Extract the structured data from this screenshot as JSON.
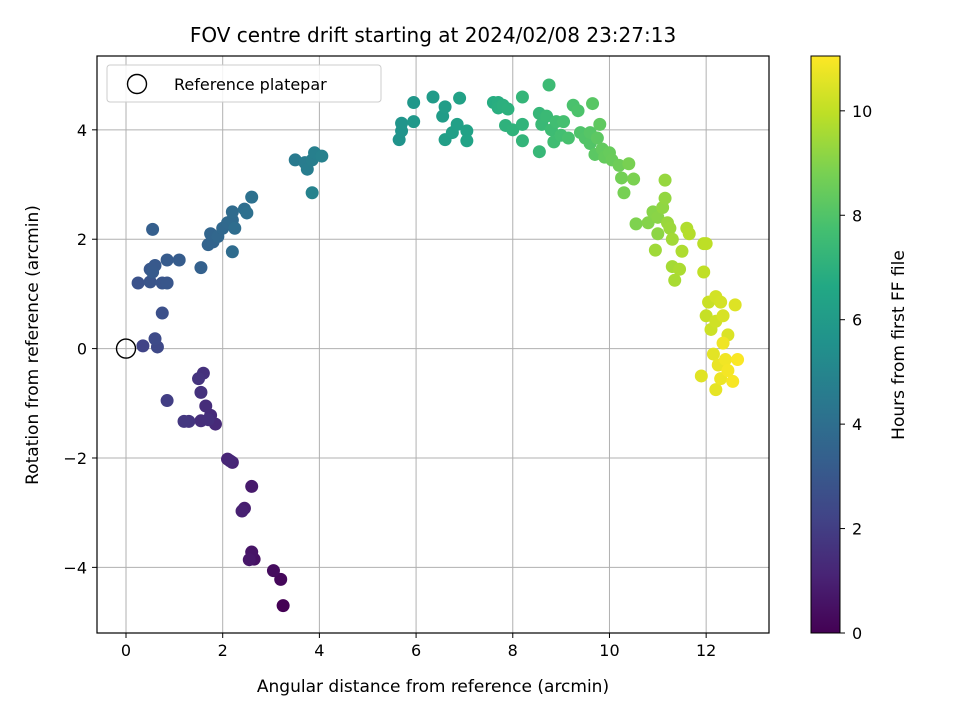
{
  "chart_data": {
    "type": "scatter",
    "title": "FOV centre drift starting at 2024/02/08 23:27:13",
    "xlabel": "Angular distance from reference (arcmin)",
    "ylabel": "Rotation from reference (arcmin)",
    "xlim": [
      -0.6,
      13.3
    ],
    "ylim": [
      -5.2,
      5.35
    ],
    "xticks": [
      0,
      2,
      4,
      6,
      8,
      10,
      12
    ],
    "yticks": [
      -4,
      -2,
      0,
      2,
      4
    ],
    "grid": true,
    "legend": {
      "label": "Reference platepar",
      "placement": "upper-left"
    },
    "reference_point": {
      "x": 0,
      "y": 0
    },
    "colorbar": {
      "label": "Hours from first FF file",
      "range": [
        0,
        11.05
      ],
      "ticks": [
        0,
        2,
        4,
        6,
        8,
        10
      ],
      "colormap": "viridis"
    },
    "points": [
      {
        "x": 3.25,
        "y": -4.7,
        "t": 0.0
      },
      {
        "x": 3.2,
        "y": -4.22,
        "t": 0.2
      },
      {
        "x": 3.05,
        "y": -4.06,
        "t": 0.35
      },
      {
        "x": 2.65,
        "y": -3.85,
        "t": 0.5
      },
      {
        "x": 2.6,
        "y": -3.72,
        "t": 0.6
      },
      {
        "x": 2.55,
        "y": -3.86,
        "t": 0.7
      },
      {
        "x": 2.6,
        "y": -2.52,
        "t": 0.8
      },
      {
        "x": 2.45,
        "y": -2.92,
        "t": 0.9
      },
      {
        "x": 2.4,
        "y": -2.97,
        "t": 1.0
      },
      {
        "x": 2.2,
        "y": -2.08,
        "t": 1.1
      },
      {
        "x": 2.1,
        "y": -2.02,
        "t": 1.15
      },
      {
        "x": 2.15,
        "y": -2.05,
        "t": 1.2
      },
      {
        "x": 1.85,
        "y": -1.38,
        "t": 1.3
      },
      {
        "x": 1.75,
        "y": -1.22,
        "t": 1.35
      },
      {
        "x": 1.65,
        "y": -1.05,
        "t": 1.4
      },
      {
        "x": 1.55,
        "y": -1.32,
        "t": 1.45
      },
      {
        "x": 1.7,
        "y": -1.3,
        "t": 1.5
      },
      {
        "x": 1.6,
        "y": -0.45,
        "t": 1.55
      },
      {
        "x": 1.55,
        "y": -0.8,
        "t": 1.6
      },
      {
        "x": 1.5,
        "y": -0.55,
        "t": 1.65
      },
      {
        "x": 1.3,
        "y": -1.33,
        "t": 1.7
      },
      {
        "x": 1.2,
        "y": -1.33,
        "t": 1.8
      },
      {
        "x": 0.85,
        "y": -0.95,
        "t": 2.0
      },
      {
        "x": 0.35,
        "y": 0.05,
        "t": 2.2
      },
      {
        "x": 0.65,
        "y": 0.03,
        "t": 2.4
      },
      {
        "x": 0.6,
        "y": 0.18,
        "t": 2.5
      },
      {
        "x": 0.75,
        "y": 0.65,
        "t": 2.7
      },
      {
        "x": 0.25,
        "y": 1.2,
        "t": 2.8
      },
      {
        "x": 0.5,
        "y": 1.22,
        "t": 2.85
      },
      {
        "x": 0.75,
        "y": 1.2,
        "t": 2.9
      },
      {
        "x": 0.85,
        "y": 1.2,
        "t": 2.95
      },
      {
        "x": 0.5,
        "y": 1.45,
        "t": 3.0
      },
      {
        "x": 0.6,
        "y": 1.52,
        "t": 3.05
      },
      {
        "x": 0.55,
        "y": 1.4,
        "t": 3.1
      },
      {
        "x": 0.85,
        "y": 1.62,
        "t": 3.15
      },
      {
        "x": 1.1,
        "y": 1.62,
        "t": 3.2
      },
      {
        "x": 0.55,
        "y": 2.18,
        "t": 3.3
      },
      {
        "x": 1.55,
        "y": 1.48,
        "t": 3.4
      },
      {
        "x": 1.7,
        "y": 1.9,
        "t": 3.5
      },
      {
        "x": 1.8,
        "y": 1.95,
        "t": 3.55
      },
      {
        "x": 1.75,
        "y": 2.1,
        "t": 3.6
      },
      {
        "x": 1.9,
        "y": 2.05,
        "t": 3.65
      },
      {
        "x": 2.0,
        "y": 2.2,
        "t": 3.7
      },
      {
        "x": 2.1,
        "y": 2.3,
        "t": 3.75
      },
      {
        "x": 2.2,
        "y": 2.35,
        "t": 3.8
      },
      {
        "x": 2.2,
        "y": 2.5,
        "t": 3.85
      },
      {
        "x": 2.2,
        "y": 1.77,
        "t": 3.9
      },
      {
        "x": 2.25,
        "y": 2.2,
        "t": 3.95
      },
      {
        "x": 2.45,
        "y": 2.55,
        "t": 4.0
      },
      {
        "x": 2.5,
        "y": 2.48,
        "t": 4.05
      },
      {
        "x": 2.6,
        "y": 2.77,
        "t": 4.1
      },
      {
        "x": 3.5,
        "y": 3.45,
        "t": 4.5
      },
      {
        "x": 3.7,
        "y": 3.4,
        "t": 4.6
      },
      {
        "x": 3.75,
        "y": 3.28,
        "t": 4.65
      },
      {
        "x": 3.85,
        "y": 3.45,
        "t": 4.7
      },
      {
        "x": 3.9,
        "y": 3.58,
        "t": 4.75
      },
      {
        "x": 4.05,
        "y": 3.52,
        "t": 4.8
      },
      {
        "x": 3.85,
        "y": 2.85,
        "t": 4.85
      },
      {
        "x": 5.65,
        "y": 3.82,
        "t": 5.6
      },
      {
        "x": 5.7,
        "y": 3.98,
        "t": 5.65
      },
      {
        "x": 5.7,
        "y": 4.12,
        "t": 5.7
      },
      {
        "x": 5.95,
        "y": 4.5,
        "t": 5.8
      },
      {
        "x": 5.95,
        "y": 4.15,
        "t": 5.85
      },
      {
        "x": 6.35,
        "y": 4.6,
        "t": 6.0
      },
      {
        "x": 6.55,
        "y": 4.25,
        "t": 6.05
      },
      {
        "x": 6.6,
        "y": 4.42,
        "t": 6.1
      },
      {
        "x": 6.6,
        "y": 3.82,
        "t": 6.15
      },
      {
        "x": 6.75,
        "y": 3.95,
        "t": 6.2
      },
      {
        "x": 6.85,
        "y": 4.1,
        "t": 6.25
      },
      {
        "x": 6.9,
        "y": 4.58,
        "t": 6.3
      },
      {
        "x": 7.05,
        "y": 3.98,
        "t": 6.35
      },
      {
        "x": 7.05,
        "y": 3.8,
        "t": 6.4
      },
      {
        "x": 7.6,
        "y": 4.5,
        "t": 6.8
      },
      {
        "x": 7.7,
        "y": 4.5,
        "t": 6.85
      },
      {
        "x": 7.7,
        "y": 4.4,
        "t": 6.9
      },
      {
        "x": 7.8,
        "y": 4.45,
        "t": 6.95
      },
      {
        "x": 7.9,
        "y": 4.38,
        "t": 7.0
      },
      {
        "x": 7.85,
        "y": 4.08,
        "t": 7.05
      },
      {
        "x": 8.0,
        "y": 4.0,
        "t": 7.1
      },
      {
        "x": 8.2,
        "y": 4.1,
        "t": 7.15
      },
      {
        "x": 8.2,
        "y": 3.8,
        "t": 7.2
      },
      {
        "x": 8.2,
        "y": 4.6,
        "t": 7.25
      },
      {
        "x": 8.55,
        "y": 4.3,
        "t": 7.3
      },
      {
        "x": 8.55,
        "y": 3.6,
        "t": 7.35
      },
      {
        "x": 8.6,
        "y": 4.1,
        "t": 7.4
      },
      {
        "x": 8.7,
        "y": 4.25,
        "t": 7.45
      },
      {
        "x": 8.75,
        "y": 4.82,
        "t": 7.5
      },
      {
        "x": 8.8,
        "y": 4.0,
        "t": 7.55
      },
      {
        "x": 8.85,
        "y": 3.78,
        "t": 7.6
      },
      {
        "x": 8.9,
        "y": 4.15,
        "t": 7.65
      },
      {
        "x": 9.0,
        "y": 3.9,
        "t": 7.7
      },
      {
        "x": 9.05,
        "y": 4.15,
        "t": 7.75
      },
      {
        "x": 9.15,
        "y": 3.85,
        "t": 7.8
      },
      {
        "x": 9.25,
        "y": 4.45,
        "t": 7.85
      },
      {
        "x": 9.35,
        "y": 4.35,
        "t": 7.9
      },
      {
        "x": 9.4,
        "y": 3.95,
        "t": 7.95
      },
      {
        "x": 9.5,
        "y": 3.85,
        "t": 8.0
      },
      {
        "x": 9.6,
        "y": 3.75,
        "t": 8.05
      },
      {
        "x": 9.6,
        "y": 3.95,
        "t": 8.1
      },
      {
        "x": 9.65,
        "y": 4.48,
        "t": 8.15
      },
      {
        "x": 9.7,
        "y": 3.55,
        "t": 8.2
      },
      {
        "x": 9.75,
        "y": 3.85,
        "t": 8.25
      },
      {
        "x": 9.8,
        "y": 4.1,
        "t": 8.3
      },
      {
        "x": 9.85,
        "y": 3.65,
        "t": 8.35
      },
      {
        "x": 9.9,
        "y": 3.5,
        "t": 8.4
      },
      {
        "x": 10.0,
        "y": 3.58,
        "t": 8.45
      },
      {
        "x": 10.05,
        "y": 3.45,
        "t": 8.5
      },
      {
        "x": 10.2,
        "y": 3.35,
        "t": 8.6
      },
      {
        "x": 10.25,
        "y": 3.12,
        "t": 8.7
      },
      {
        "x": 10.3,
        "y": 2.85,
        "t": 8.75
      },
      {
        "x": 10.4,
        "y": 3.38,
        "t": 8.8
      },
      {
        "x": 10.5,
        "y": 3.1,
        "t": 8.85
      },
      {
        "x": 10.55,
        "y": 2.28,
        "t": 8.9
      },
      {
        "x": 10.8,
        "y": 2.3,
        "t": 9.0
      },
      {
        "x": 10.9,
        "y": 2.5,
        "t": 9.05
      },
      {
        "x": 11.0,
        "y": 2.4,
        "t": 9.1
      },
      {
        "x": 11.0,
        "y": 2.1,
        "t": 9.15
      },
      {
        "x": 11.1,
        "y": 2.58,
        "t": 9.2
      },
      {
        "x": 11.15,
        "y": 2.75,
        "t": 9.25
      },
      {
        "x": 11.15,
        "y": 3.08,
        "t": 9.3
      },
      {
        "x": 11.2,
        "y": 2.3,
        "t": 9.35
      },
      {
        "x": 11.25,
        "y": 2.2,
        "t": 9.4
      },
      {
        "x": 10.95,
        "y": 1.8,
        "t": 9.45
      },
      {
        "x": 11.3,
        "y": 2.0,
        "t": 9.5
      },
      {
        "x": 11.3,
        "y": 1.5,
        "t": 9.55
      },
      {
        "x": 11.35,
        "y": 1.25,
        "t": 9.6
      },
      {
        "x": 11.45,
        "y": 1.45,
        "t": 9.65
      },
      {
        "x": 11.5,
        "y": 1.78,
        "t": 9.7
      },
      {
        "x": 11.6,
        "y": 2.2,
        "t": 9.75
      },
      {
        "x": 11.65,
        "y": 2.1,
        "t": 9.8
      },
      {
        "x": 11.95,
        "y": 1.92,
        "t": 9.9
      },
      {
        "x": 12.0,
        "y": 1.92,
        "t": 9.95
      },
      {
        "x": 11.95,
        "y": 1.4,
        "t": 10.0
      },
      {
        "x": 12.0,
        "y": 0.6,
        "t": 10.1
      },
      {
        "x": 12.05,
        "y": 0.85,
        "t": 10.15
      },
      {
        "x": 12.1,
        "y": 0.35,
        "t": 10.2
      },
      {
        "x": 12.2,
        "y": 0.5,
        "t": 10.25
      },
      {
        "x": 12.2,
        "y": 0.95,
        "t": 10.3
      },
      {
        "x": 12.3,
        "y": 0.85,
        "t": 10.35
      },
      {
        "x": 12.35,
        "y": 0.6,
        "t": 10.4
      },
      {
        "x": 12.45,
        "y": 0.25,
        "t": 10.45
      },
      {
        "x": 12.6,
        "y": 0.8,
        "t": 10.5
      },
      {
        "x": 11.9,
        "y": -0.5,
        "t": 10.55
      },
      {
        "x": 12.15,
        "y": -0.1,
        "t": 10.6
      },
      {
        "x": 12.2,
        "y": -0.75,
        "t": 10.65
      },
      {
        "x": 12.25,
        "y": -0.3,
        "t": 10.7
      },
      {
        "x": 12.3,
        "y": -0.55,
        "t": 10.75
      },
      {
        "x": 12.35,
        "y": 0.1,
        "t": 10.8
      },
      {
        "x": 12.4,
        "y": -0.2,
        "t": 10.85
      },
      {
        "x": 12.45,
        "y": -0.4,
        "t": 10.9
      },
      {
        "x": 12.55,
        "y": -0.6,
        "t": 10.95
      },
      {
        "x": 12.65,
        "y": -0.2,
        "t": 11.0
      }
    ]
  }
}
